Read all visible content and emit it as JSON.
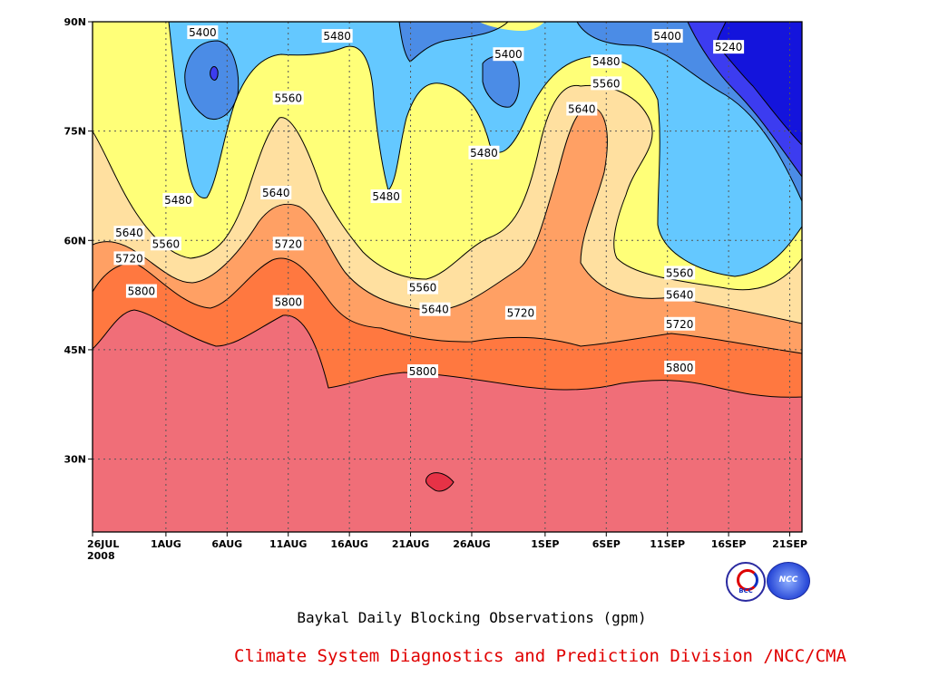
{
  "chart_data": {
    "type": "heatmap",
    "title": "Baykal Daily Blocking Observations (gpm)",
    "credit": "Climate System Diagnostics and Prediction Division /NCC/CMA",
    "x_axis": {
      "kind": "date",
      "range": [
        "2008-07-26",
        "2008-09-22"
      ],
      "ticks": [
        {
          "date": "2008-07-26",
          "label": "26JUL",
          "sublabel": "2008"
        },
        {
          "date": "2008-08-01",
          "label": "1AUG"
        },
        {
          "date": "2008-08-06",
          "label": "6AUG"
        },
        {
          "date": "2008-08-11",
          "label": "11AUG"
        },
        {
          "date": "2008-08-16",
          "label": "16AUG"
        },
        {
          "date": "2008-08-21",
          "label": "21AUG"
        },
        {
          "date": "2008-08-26",
          "label": "26AUG"
        },
        {
          "date": "2008-09-01",
          "label": "1SEP"
        },
        {
          "date": "2008-09-06",
          "label": "6SEP"
        },
        {
          "date": "2008-09-11",
          "label": "11SEP"
        },
        {
          "date": "2008-09-16",
          "label": "16SEP"
        },
        {
          "date": "2008-09-21",
          "label": "21SEP"
        }
      ]
    },
    "y_axis": {
      "kind": "latitude",
      "range": [
        20,
        90
      ],
      "ticks": [
        {
          "value": 30,
          "label": "30N"
        },
        {
          "value": 45,
          "label": "45N"
        },
        {
          "value": 60,
          "label": "60N"
        },
        {
          "value": 75,
          "label": "75N"
        },
        {
          "value": 90,
          "label": "90N"
        }
      ]
    },
    "grid": true,
    "levels": [
      {
        "value": 5240,
        "color": "#1414dc"
      },
      {
        "value": 5320,
        "color": "#3c3cf0"
      },
      {
        "value": 5400,
        "color": "#4b8ce6"
      },
      {
        "value": 5480,
        "color": "#64c8ff"
      },
      {
        "value": 5560,
        "color": "#ffff78"
      },
      {
        "value": 5640,
        "color": "#ffe0a0"
      },
      {
        "value": 5720,
        "color": "#ffa064"
      },
      {
        "value": 5800,
        "color": "#ff7840"
      },
      {
        "value": 5880,
        "color": "#f06e78"
      },
      {
        "value": 5960,
        "color": "#e63246"
      }
    ],
    "contour_labels": [
      {
        "text": "5400",
        "date": "2008-08-04",
        "lat": 88.5
      },
      {
        "text": "5480",
        "date": "2008-08-15",
        "lat": 88.0
      },
      {
        "text": "5400",
        "date": "2008-08-29",
        "lat": 85.5
      },
      {
        "text": "5480",
        "date": "2008-09-06",
        "lat": 84.5
      },
      {
        "text": "5400",
        "date": "2008-09-11",
        "lat": 88.0
      },
      {
        "text": "5240",
        "date": "2008-09-16",
        "lat": 86.5
      },
      {
        "text": "5560",
        "date": "2008-08-11",
        "lat": 79.5
      },
      {
        "text": "5560",
        "date": "2008-09-06",
        "lat": 81.5
      },
      {
        "text": "5640",
        "date": "2008-09-04",
        "lat": 78.0
      },
      {
        "text": "5480",
        "date": "2008-08-27",
        "lat": 72.0
      },
      {
        "text": "5480",
        "date": "2008-08-02",
        "lat": 65.5
      },
      {
        "text": "5640",
        "date": "2008-08-10",
        "lat": 66.5
      },
      {
        "text": "5480",
        "date": "2008-08-19",
        "lat": 66.0
      },
      {
        "text": "5640",
        "date": "2008-07-29",
        "lat": 61.0
      },
      {
        "text": "5560",
        "date": "2008-08-01",
        "lat": 59.5
      },
      {
        "text": "5720",
        "date": "2008-07-29",
        "lat": 57.5
      },
      {
        "text": "5720",
        "date": "2008-08-11",
        "lat": 59.5
      },
      {
        "text": "5800",
        "date": "2008-07-30",
        "lat": 53.0
      },
      {
        "text": "5800",
        "date": "2008-08-11",
        "lat": 51.5
      },
      {
        "text": "5560",
        "date": "2008-08-22",
        "lat": 53.5
      },
      {
        "text": "5640",
        "date": "2008-08-23",
        "lat": 50.5
      },
      {
        "text": "5720",
        "date": "2008-08-30",
        "lat": 50.0
      },
      {
        "text": "5800",
        "date": "2008-08-22",
        "lat": 42.0
      },
      {
        "text": "5560",
        "date": "2008-09-12",
        "lat": 55.5
      },
      {
        "text": "5640",
        "date": "2008-09-12",
        "lat": 52.5
      },
      {
        "text": "5720",
        "date": "2008-09-12",
        "lat": 48.5
      },
      {
        "text": "5800",
        "date": "2008-09-12",
        "lat": 42.5
      }
    ]
  }
}
